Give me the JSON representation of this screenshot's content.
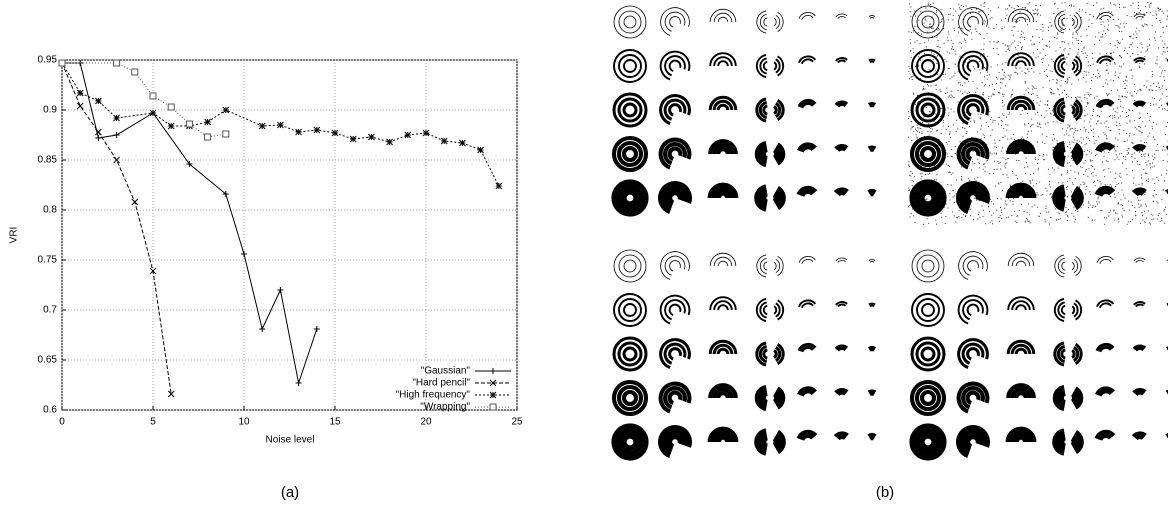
{
  "chart_data": {
    "type": "line",
    "xlabel": "Noise level",
    "ylabel": "VRI",
    "xlim": [
      0,
      25
    ],
    "ylim": [
      0.6,
      0.95
    ],
    "xticks": [
      0,
      5,
      10,
      15,
      20,
      25
    ],
    "yticks": [
      0.6,
      0.65,
      0.7,
      0.75,
      0.8,
      0.85,
      0.9,
      0.95
    ],
    "grid": true,
    "legend": "lower right",
    "series": [
      {
        "name": "\"Gaussian\"",
        "color": "#000000",
        "marker": "+",
        "dash": "none",
        "x": [
          0,
          1,
          2,
          3,
          5,
          7,
          9,
          10,
          11,
          12,
          13,
          14
        ],
        "values": [
          0.947,
          0.947,
          0.872,
          0.875,
          0.897,
          0.846,
          0.816,
          0.756,
          0.681,
          0.72,
          0.627,
          0.681
        ]
      },
      {
        "name": "\"Hard pencil\"",
        "color": "#000000",
        "marker": "x",
        "dash": "4,2",
        "x": [
          0,
          1,
          2,
          3,
          4,
          5,
          6
        ],
        "values": [
          0.947,
          0.904,
          0.878,
          0.85,
          0.808,
          0.739,
          0.616
        ]
      },
      {
        "name": "\"High frequency\"",
        "color": "#000000",
        "marker": "*",
        "dash": "2,2",
        "x": [
          0,
          1,
          2,
          3,
          5,
          6,
          7,
          8,
          9,
          11,
          12,
          13,
          14,
          15,
          16,
          17,
          18,
          19,
          20,
          21,
          22,
          23,
          24
        ],
        "values": [
          0.947,
          0.917,
          0.909,
          0.892,
          0.897,
          0.884,
          0.884,
          0.888,
          0.9,
          0.884,
          0.885,
          0.878,
          0.88,
          0.877,
          0.871,
          0.873,
          0.868,
          0.875,
          0.877,
          0.869,
          0.867,
          0.86,
          0.824
        ]
      },
      {
        "name": "\"Wrapping\"",
        "color": "#555555",
        "marker": "square",
        "dash": "1,2",
        "x": [
          0,
          3,
          4,
          5,
          6,
          7,
          8,
          9
        ],
        "values": [
          0.947,
          0.947,
          0.938,
          0.914,
          0.903,
          0.886,
          0.873,
          0.876
        ]
      }
    ]
  },
  "captions": [
    "(a)",
    "(b)"
  ]
}
